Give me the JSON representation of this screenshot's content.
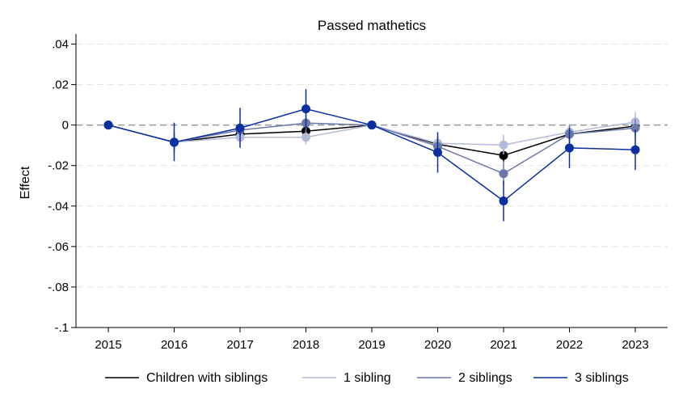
{
  "chart_data": {
    "type": "line",
    "title": "Passed mathetics",
    "ylabel": "Effect",
    "xlabel": "",
    "x": [
      2015,
      2016,
      2017,
      2018,
      2019,
      2020,
      2021,
      2022,
      2023
    ],
    "ylim": [
      -0.1,
      0.045
    ],
    "yticks": [
      0.04,
      0.02,
      0,
      -0.02,
      -0.04,
      -0.06,
      -0.08,
      -0.1
    ],
    "ytick_labels": [
      ".04",
      ".02",
      "0",
      "-.02",
      "-.04",
      "-.06",
      "-.08",
      "-.1"
    ],
    "xtick_labels": [
      "2015",
      "2016",
      "2017",
      "2018",
      "2019",
      "2020",
      "2021",
      "2022",
      "2023"
    ],
    "reference_line": 0,
    "grid": true,
    "legend_position": "bottom",
    "series": [
      {
        "name": "Children with siblings",
        "color": "#000000",
        "values": [
          0,
          -0.0085,
          -0.0045,
          -0.003,
          0,
          -0.0095,
          -0.015,
          -0.0045,
          -0.0005
        ],
        "ci": [
          [
            0,
            0
          ],
          [
            -0.0125,
            -0.0045
          ],
          [
            -0.0075,
            -0.0015
          ],
          [
            -0.006,
            0
          ],
          [
            0,
            0
          ],
          [
            -0.0125,
            -0.0065
          ],
          [
            -0.018,
            -0.012
          ],
          [
            -0.0075,
            -0.0015
          ],
          [
            -0.0035,
            0.0025
          ]
        ]
      },
      {
        "name": "1 sibling",
        "color": "#b3bbd9",
        "values": [
          0,
          -0.0085,
          -0.006,
          -0.006,
          0,
          -0.009,
          -0.0098,
          -0.0035,
          0.0015
        ],
        "ci": [
          [
            0,
            0
          ],
          [
            -0.0125,
            -0.0045
          ],
          [
            -0.0095,
            -0.0025
          ],
          [
            -0.0095,
            -0.0025
          ],
          [
            0,
            0
          ],
          [
            -0.0125,
            -0.0055
          ],
          [
            -0.0145,
            -0.0048
          ],
          [
            -0.0075,
            0.0005
          ],
          [
            -0.0025,
            0.0065
          ]
        ]
      },
      {
        "name": "2 siblings",
        "color": "#6b78a8",
        "values": [
          0,
          -0.0085,
          -0.0025,
          0.001,
          0,
          -0.0105,
          -0.024,
          -0.0045,
          -0.0015
        ],
        "ci": [
          [
            0,
            0
          ],
          [
            -0.0135,
            -0.0035
          ],
          [
            -0.007,
            0.002
          ],
          [
            -0.0035,
            0.0055
          ],
          [
            0,
            0
          ],
          [
            -0.015,
            -0.006
          ],
          [
            -0.03,
            -0.018
          ],
          [
            -0.009,
            0
          ],
          [
            -0.006,
            0.003
          ]
        ]
      },
      {
        "name": "3 siblings",
        "color": "#0a2fa0",
        "values": [
          0,
          -0.0085,
          -0.0015,
          0.008,
          0,
          -0.0135,
          -0.0375,
          -0.0113,
          -0.0122
        ],
        "ci": [
          [
            0,
            0
          ],
          [
            -0.0178,
            0.0012
          ],
          [
            -0.0112,
            0.0085
          ],
          [
            -0.0015,
            0.0178
          ],
          [
            0,
            0
          ],
          [
            -0.0235,
            -0.0035
          ],
          [
            -0.0475,
            -0.0275
          ],
          [
            -0.0213,
            -0.0013
          ],
          [
            -0.0222,
            -0.0022
          ]
        ]
      }
    ]
  }
}
